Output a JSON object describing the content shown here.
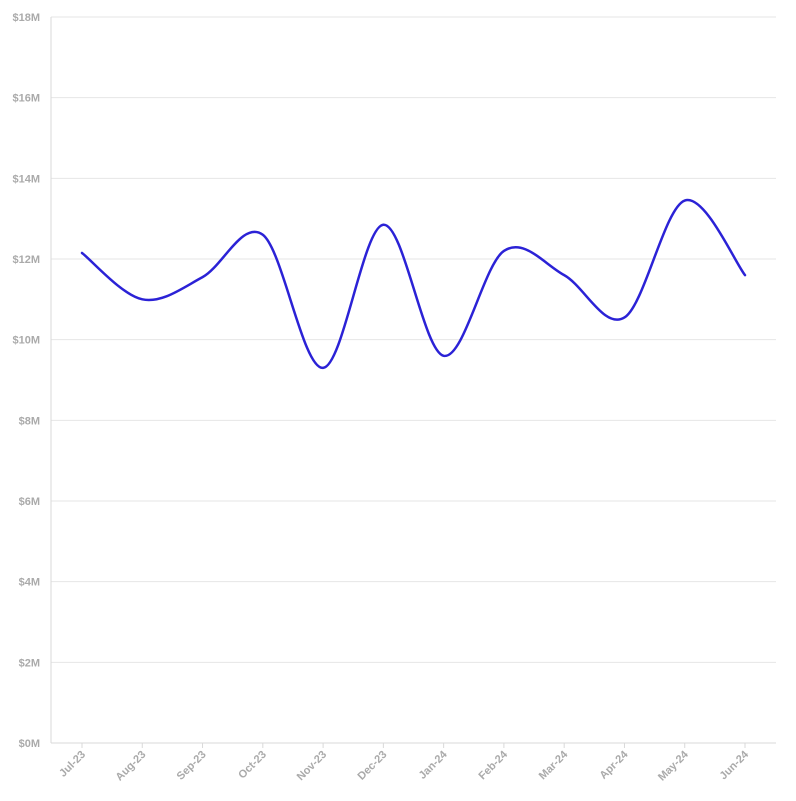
{
  "chart_data": {
    "type": "line",
    "title": "",
    "xlabel": "",
    "ylabel": "",
    "categories": [
      "Jul-23",
      "Aug-23",
      "Sep-23",
      "Oct-23",
      "Nov-23",
      "Dec-23",
      "Jan-24",
      "Feb-24",
      "Mar-24",
      "Apr-24",
      "May-24",
      "Jun-24"
    ],
    "series": [
      {
        "values": [
          12.15,
          11.0,
          11.55,
          12.6,
          9.3,
          12.85,
          9.6,
          12.2,
          11.6,
          10.55,
          13.45,
          11.6
        ]
      }
    ],
    "ylim": [
      0,
      18
    ],
    "yticks": [
      0,
      2,
      4,
      6,
      8,
      10,
      12,
      14,
      16,
      18
    ],
    "ytick_labels": [
      "$0M",
      "$2M",
      "$4M",
      "$6M",
      "$8M",
      "$10M",
      "$12M",
      "$14M",
      "$16M",
      "$18M"
    ],
    "grid": true,
    "legend": "none",
    "colors": {
      "line": "#2b22d6",
      "grid": "#e6e6e6",
      "axis": "#d9d9d9",
      "tick_text": "#aaaaaa"
    }
  }
}
